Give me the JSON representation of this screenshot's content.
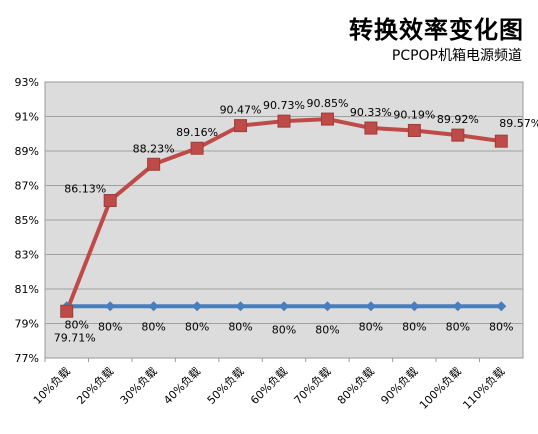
{
  "chart_data": {
    "type": "line",
    "title": "转换效率变化图",
    "subtitle": "PCPOP机箱电源频道",
    "categories": [
      "10%负载",
      "20%负载",
      "30%负载",
      "40%负载",
      "50%负载",
      "60%负载",
      "70%负载",
      "80%负载",
      "90%负载",
      "100%负载",
      "110%负载"
    ],
    "ylim": [
      77,
      93
    ],
    "yticks": [
      "77%",
      "79%",
      "81%",
      "83%",
      "85%",
      "87%",
      "89%",
      "91%",
      "93%"
    ],
    "grid": true,
    "series": [
      {
        "values": [
          79.71,
          86.13,
          88.23,
          89.16,
          90.47,
          90.73,
          90.85,
          90.33,
          90.19,
          89.92,
          89.57
        ],
        "labels": [
          "79.71%",
          "86.13%",
          "88.23%",
          "89.16%",
          "90.47%",
          "90.73%",
          "90.85%",
          "90.33%",
          "90.19%",
          "89.92%",
          "89.57%"
        ],
        "color": "#be4b48",
        "marker": "square"
      },
      {
        "values": [
          80,
          80,
          80,
          80,
          80,
          80,
          80,
          80,
          80,
          80,
          80
        ],
        "labels": [
          "80%",
          "80%",
          "80%",
          "80%",
          "80%",
          "80%",
          "80%",
          "80%",
          "80%",
          "80%",
          "80%"
        ],
        "color": "#4a7ebb",
        "marker": "diamond"
      }
    ]
  }
}
